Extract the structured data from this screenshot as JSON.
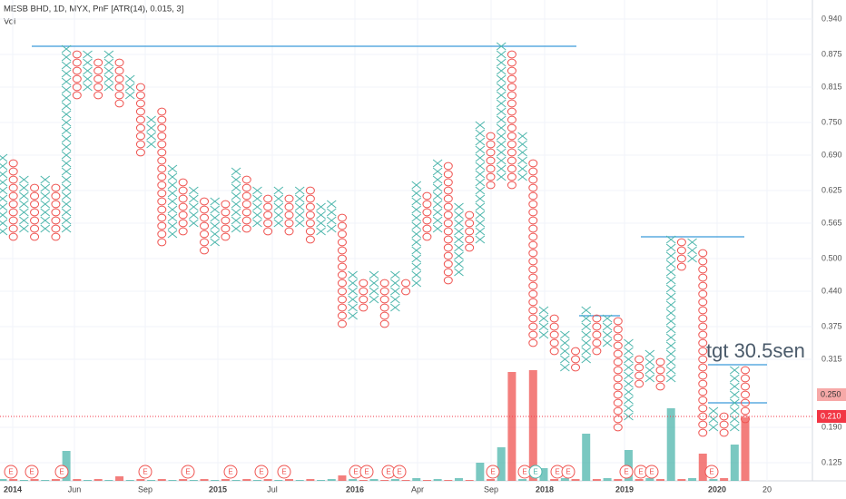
{
  "chart_data": {
    "type": "pnf",
    "title": "MESB BHD, 1D, MYX, PnF [ATR(14), 0.015, 3]",
    "volume_label": "Vol",
    "annotation": "tgt 30.5sen",
    "box_size": 0.015,
    "x_color": "#4db6ac",
    "o_color": "#ef5350",
    "line_color": "#3a9ad9",
    "grid": true,
    "ylim": [
      0.125,
      0.94
    ],
    "yticks": [
      {
        "value": 0.94,
        "label": "0.940"
      },
      0.875,
      0.815,
      {
        "value": 0.75,
        "label": "0.750"
      },
      {
        "value": 0.69,
        "label": "0.690"
      },
      0.625,
      0.565,
      {
        "value": 0.5,
        "label": "0.500"
      },
      {
        "value": 0.44,
        "label": "0.440"
      },
      0.375,
      0.315,
      {
        "value": 0.19,
        "label": "0.190"
      },
      0.125
    ],
    "marker_price": {
      "value": 0.25,
      "label": "0.250"
    },
    "last_price": {
      "value": 0.21,
      "label": "0.210"
    },
    "levels": [
      0.89,
      0.54,
      0.395,
      0.305,
      0.235
    ],
    "x_labels": [
      "2014",
      "Jun",
      "Sep",
      "2015",
      "Jul",
      "2016",
      "Apr",
      "Sep",
      "2018",
      "2019",
      "2020",
      "20"
    ],
    "events": [
      "E",
      "E",
      "E",
      "E",
      "E",
      "E",
      "E",
      "E",
      "E",
      "E",
      "E",
      "E",
      "E",
      "E",
      "E",
      "E",
      "E",
      "E",
      "E",
      "E",
      "E"
    ],
    "columns": [
      {
        "type": "X",
        "low": 0.55,
        "high": 0.69
      },
      {
        "type": "O",
        "low": 0.54,
        "high": 0.675
      },
      {
        "type": "X",
        "low": 0.555,
        "high": 0.645
      },
      {
        "type": "O",
        "low": 0.54,
        "high": 0.63
      },
      {
        "type": "X",
        "low": 0.555,
        "high": 0.645
      },
      {
        "type": "O",
        "low": 0.54,
        "high": 0.63
      },
      {
        "type": "X",
        "low": 0.555,
        "high": 0.89
      },
      {
        "type": "O",
        "low": 0.8,
        "high": 0.875
      },
      {
        "type": "X",
        "low": 0.815,
        "high": 0.875
      },
      {
        "type": "O",
        "low": 0.8,
        "high": 0.86
      },
      {
        "type": "X",
        "low": 0.815,
        "high": 0.875
      },
      {
        "type": "O",
        "low": 0.785,
        "high": 0.86
      },
      {
        "type": "X",
        "low": 0.8,
        "high": 0.83
      },
      {
        "type": "O",
        "low": 0.695,
        "high": 0.815
      },
      {
        "type": "X",
        "low": 0.71,
        "high": 0.755
      },
      {
        "type": "O",
        "low": 0.53,
        "high": 0.77
      },
      {
        "type": "X",
        "low": 0.545,
        "high": 0.66
      },
      {
        "type": "O",
        "low": 0.55,
        "high": 0.645
      },
      {
        "type": "X",
        "low": 0.565,
        "high": 0.62
      },
      {
        "type": "O",
        "low": 0.515,
        "high": 0.61
      },
      {
        "type": "X",
        "low": 0.53,
        "high": 0.61
      },
      {
        "type": "O",
        "low": 0.54,
        "high": 0.6
      },
      {
        "type": "X",
        "low": 0.555,
        "high": 0.665
      },
      {
        "type": "O",
        "low": 0.555,
        "high": 0.645
      },
      {
        "type": "X",
        "low": 0.565,
        "high": 0.62
      },
      {
        "type": "O",
        "low": 0.55,
        "high": 0.61
      },
      {
        "type": "X",
        "low": 0.565,
        "high": 0.625
      },
      {
        "type": "O",
        "low": 0.55,
        "high": 0.61
      },
      {
        "type": "X",
        "low": 0.565,
        "high": 0.63
      },
      {
        "type": "O",
        "low": 0.535,
        "high": 0.62
      },
      {
        "type": "X",
        "low": 0.55,
        "high": 0.6
      },
      {
        "type": "X",
        "low": 0.555,
        "high": 0.595
      },
      {
        "type": "O",
        "low": 0.38,
        "high": 0.58
      },
      {
        "type": "X",
        "low": 0.395,
        "high": 0.47
      },
      {
        "type": "O",
        "low": 0.41,
        "high": 0.46
      },
      {
        "type": "X",
        "low": 0.425,
        "high": 0.475
      },
      {
        "type": "O",
        "low": 0.38,
        "high": 0.46
      },
      {
        "type": "X",
        "low": 0.41,
        "high": 0.475
      },
      {
        "type": "O",
        "low": 0.44,
        "high": 0.46
      },
      {
        "type": "X",
        "low": 0.455,
        "high": 0.64
      },
      {
        "type": "O",
        "low": 0.54,
        "high": 0.62
      },
      {
        "type": "X",
        "low": 0.555,
        "high": 0.68
      },
      {
        "type": "O",
        "low": 0.46,
        "high": 0.665
      },
      {
        "type": "X",
        "low": 0.475,
        "high": 0.59
      },
      {
        "type": "O",
        "low": 0.52,
        "high": 0.575
      },
      {
        "type": "X",
        "low": 0.535,
        "high": 0.74
      },
      {
        "type": "O",
        "low": 0.635,
        "high": 0.73
      },
      {
        "type": "X",
        "low": 0.65,
        "high": 0.89
      },
      {
        "type": "O",
        "low": 0.635,
        "high": 0.875
      },
      {
        "type": "X",
        "low": 0.65,
        "high": 0.72
      },
      {
        "type": "O",
        "low": 0.345,
        "high": 0.68
      },
      {
        "type": "X",
        "low": 0.36,
        "high": 0.41
      },
      {
        "type": "O",
        "low": 0.33,
        "high": 0.39
      },
      {
        "type": "X",
        "low": 0.3,
        "high": 0.36
      },
      {
        "type": "O",
        "low": 0.3,
        "high": 0.33
      },
      {
        "type": "X",
        "low": 0.315,
        "high": 0.4
      },
      {
        "type": "O",
        "low": 0.33,
        "high": 0.39
      },
      {
        "type": "X",
        "low": 0.345,
        "high": 0.39
      },
      {
        "type": "O",
        "low": 0.19,
        "high": 0.38
      },
      {
        "type": "X",
        "low": 0.21,
        "high": 0.345
      },
      {
        "type": "O",
        "low": 0.27,
        "high": 0.315
      },
      {
        "type": "X",
        "low": 0.28,
        "high": 0.32
      },
      {
        "type": "O",
        "low": 0.265,
        "high": 0.315
      },
      {
        "type": "X",
        "low": 0.28,
        "high": 0.53
      },
      {
        "type": "O",
        "low": 0.485,
        "high": 0.53
      },
      {
        "type": "X",
        "low": 0.5,
        "high": 0.53
      },
      {
        "type": "O",
        "low": 0.18,
        "high": 0.51
      },
      {
        "type": "X",
        "low": 0.19,
        "high": 0.22
      },
      {
        "type": "O",
        "low": 0.18,
        "high": 0.21
      },
      {
        "type": "X",
        "low": 0.19,
        "high": 0.3
      },
      {
        "type": "O",
        "low": 0.205,
        "high": 0.29
      }
    ],
    "volume": [
      2,
      2,
      1,
      2,
      1,
      2,
      33,
      2,
      1,
      2,
      1,
      5,
      1,
      2,
      1,
      2,
      1,
      2,
      1,
      2,
      1,
      2,
      1,
      2,
      1,
      2,
      1,
      2,
      1,
      2,
      1,
      2,
      6,
      2,
      1,
      2,
      1,
      2,
      1,
      3,
      1,
      2,
      1,
      3,
      1,
      20,
      2,
      37,
      120,
      2,
      122,
      14,
      2,
      3,
      2,
      52,
      2,
      3,
      2,
      34,
      2,
      3,
      2,
      80,
      2,
      3,
      30,
      2,
      3,
      40,
      70
    ]
  }
}
